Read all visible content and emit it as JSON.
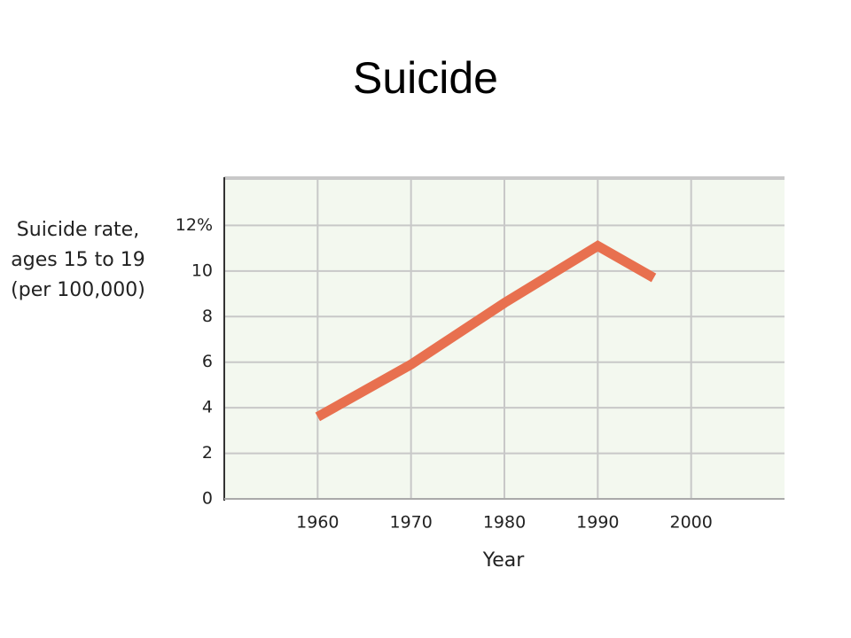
{
  "chart_data": {
    "type": "line",
    "title": "Suicide",
    "y_label": [
      "Suicide rate,",
      "ages 15 to 19",
      "(per 100,000)"
    ],
    "x_label": "Year",
    "x": [
      1960,
      1970,
      1980,
      1990,
      1996
    ],
    "series": [
      {
        "name": "Suicide rate",
        "color": "#e8704f",
        "values": [
          3.6,
          5.9,
          8.6,
          11.1,
          9.7
        ]
      }
    ],
    "xlim": [
      1950,
      2010
    ],
    "xticks": [
      1960,
      1970,
      1980,
      1990,
      2000
    ],
    "ylim": [
      0,
      14
    ],
    "yticks": [
      0,
      2,
      4,
      6,
      8,
      10,
      {
        "value": 12,
        "label": "12%"
      }
    ],
    "grid": true
  }
}
